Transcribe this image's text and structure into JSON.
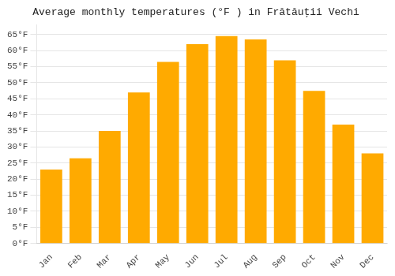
{
  "chart_data": {
    "type": "bar",
    "title": "Average monthly temperatures (°F ) in Frătăuţii Vechi",
    "categories": [
      "Jan",
      "Feb",
      "Mar",
      "Apr",
      "May",
      "Jun",
      "Jul",
      "Aug",
      "Sep",
      "Oct",
      "Nov",
      "Dec"
    ],
    "values": [
      23,
      26.5,
      35,
      47,
      56.5,
      62,
      64.5,
      63.5,
      57,
      47.5,
      37,
      28
    ],
    "color": "#FFAA00",
    "ylim": [
      0,
      68
    ],
    "yticks": [
      {
        "value": 0,
        "label": "0°F"
      },
      {
        "value": 5,
        "label": "5°F"
      },
      {
        "value": 10,
        "label": "10°F"
      },
      {
        "value": 15,
        "label": "15°F"
      },
      {
        "value": 20,
        "label": "20°F"
      },
      {
        "value": 25,
        "label": "25°F"
      },
      {
        "value": 30,
        "label": "30°F"
      },
      {
        "value": 35,
        "label": "35°F"
      },
      {
        "value": 40,
        "label": "40°F"
      },
      {
        "value": 45,
        "label": "45°F"
      },
      {
        "value": 50,
        "label": "50°F"
      },
      {
        "value": 55,
        "label": "55°F"
      },
      {
        "value": 60,
        "label": "60°F"
      },
      {
        "value": 65,
        "label": "65°F"
      }
    ],
    "grid": true
  }
}
